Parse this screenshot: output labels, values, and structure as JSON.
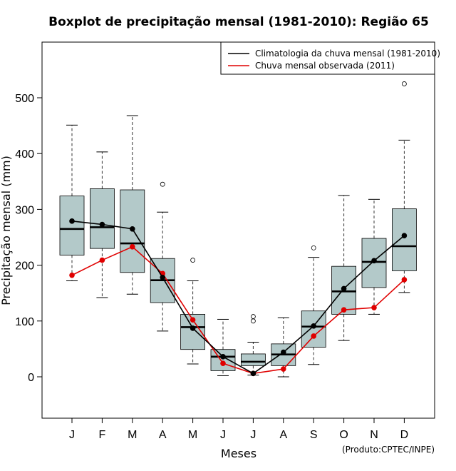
{
  "chart_data": {
    "type": "boxplot",
    "title": "Boxplot de precipitação mensal (1981-2010): Região 65",
    "xlabel": "Meses",
    "ylabel": "Precipitação mensal (mm)",
    "ylim": [
      -75,
      600
    ],
    "yticks": [
      0,
      100,
      200,
      300,
      400,
      500
    ],
    "credit": "(Produto:CPTEC/INPE)",
    "categories": [
      "J",
      "F",
      "M",
      "A",
      "M",
      "J",
      "J",
      "A",
      "S",
      "O",
      "N",
      "D"
    ],
    "box_color": "#b3c9c9",
    "boxes": [
      {
        "whisker_low": 172,
        "q1": 218,
        "median": 265,
        "q3": 324,
        "whisker_high": 451,
        "outliers": []
      },
      {
        "whisker_low": 142,
        "q1": 230,
        "median": 268,
        "q3": 337,
        "whisker_high": 403,
        "outliers": []
      },
      {
        "whisker_low": 148,
        "q1": 187,
        "median": 239,
        "q3": 335,
        "whisker_high": 468,
        "outliers": []
      },
      {
        "whisker_low": 82,
        "q1": 133,
        "median": 173,
        "q3": 212,
        "whisker_high": 295,
        "outliers": [
          345
        ]
      },
      {
        "whisker_low": 23,
        "q1": 49,
        "median": 89,
        "q3": 112,
        "whisker_high": 172,
        "outliers": [
          209
        ]
      },
      {
        "whisker_low": 2,
        "q1": 11,
        "median": 36,
        "q3": 49,
        "whisker_high": 103,
        "outliers": []
      },
      {
        "whisker_low": 3,
        "q1": 20,
        "median": 27,
        "q3": 41,
        "whisker_high": 62,
        "outliers": [
          100,
          108
        ]
      },
      {
        "whisker_low": 0,
        "q1": 20,
        "median": 40,
        "q3": 59,
        "whisker_high": 106,
        "outliers": []
      },
      {
        "whisker_low": 22,
        "q1": 53,
        "median": 90,
        "q3": 118,
        "whisker_high": 214,
        "outliers": [
          231
        ]
      },
      {
        "whisker_low": 65,
        "q1": 112,
        "median": 153,
        "q3": 198,
        "whisker_high": 325,
        "outliers": []
      },
      {
        "whisker_low": 112,
        "q1": 160,
        "median": 206,
        "q3": 248,
        "whisker_high": 318,
        "outliers": []
      },
      {
        "whisker_low": 151,
        "q1": 190,
        "median": 234,
        "q3": 301,
        "whisker_high": 424,
        "outliers": [
          525
        ]
      }
    ],
    "series": [
      {
        "name": "Climatologia da chuva mensal (1981-2010)",
        "color": "#000000",
        "values": [
          279,
          273,
          265,
          178,
          87,
          36,
          6,
          44,
          91,
          158,
          208,
          253
        ]
      },
      {
        "name": "Chuva mensal observada (2011)",
        "color": "#e00000",
        "values": [
          182,
          209,
          233,
          185,
          102,
          24,
          6,
          14,
          73,
          120,
          124,
          174
        ]
      }
    ],
    "legend_position": "top-right"
  }
}
